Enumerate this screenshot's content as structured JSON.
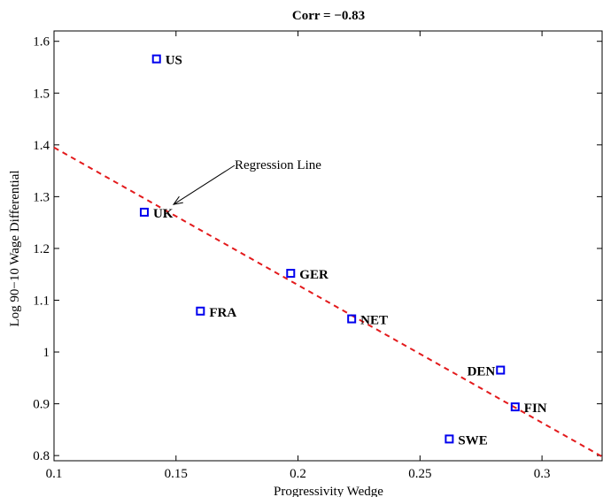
{
  "chart_data": {
    "type": "scatter",
    "title": "Corr = −0.83",
    "xlabel": "Progressivity Wedge",
    "ylabel": "Log 90−10 Wage Differential",
    "xlim": [
      0.1,
      0.325
    ],
    "ylim": [
      0.79,
      1.62
    ],
    "xticks": [
      {
        "value": 0.1,
        "label": "0.1"
      },
      {
        "value": 0.15,
        "label": "0.15"
      },
      {
        "value": 0.2,
        "label": "0.2"
      },
      {
        "value": 0.25,
        "label": "0.25"
      },
      {
        "value": 0.3,
        "label": "0.3"
      }
    ],
    "yticks": [
      {
        "value": 0.8,
        "label": "0.8"
      },
      {
        "value": 0.9,
        "label": "0.9"
      },
      {
        "value": 1.0,
        "label": "1"
      },
      {
        "value": 1.1,
        "label": "1.1"
      },
      {
        "value": 1.2,
        "label": "1.2"
      },
      {
        "value": 1.3,
        "label": "1.3"
      },
      {
        "value": 1.4,
        "label": "1.4"
      },
      {
        "value": 1.5,
        "label": "1.5"
      },
      {
        "value": 1.6,
        "label": "1.6"
      }
    ],
    "points": [
      {
        "label": "US",
        "x": 0.142,
        "y": 1.566,
        "label_side": "right"
      },
      {
        "label": "UK",
        "x": 0.137,
        "y": 1.27,
        "label_side": "right"
      },
      {
        "label": "FRA",
        "x": 0.16,
        "y": 1.079,
        "label_side": "right"
      },
      {
        "label": "GER",
        "x": 0.197,
        "y": 1.152,
        "label_side": "right"
      },
      {
        "label": "NET",
        "x": 0.222,
        "y": 1.064,
        "label_side": "right"
      },
      {
        "label": "DEN",
        "x": 0.283,
        "y": 0.965,
        "label_side": "left"
      },
      {
        "label": "FIN",
        "x": 0.289,
        "y": 0.894,
        "label_side": "right"
      },
      {
        "label": "SWE",
        "x": 0.262,
        "y": 0.832,
        "label_side": "right"
      }
    ],
    "regression_line": {
      "x1": 0.1,
      "y1": 1.395,
      "x2": 0.325,
      "y2": 0.797,
      "color": "#e31a1c",
      "style": "dashed"
    },
    "annotation": {
      "text": "Regression Line",
      "points_to": {
        "x": 0.149,
        "y": 1.285
      }
    },
    "marker_color": "#0000ee",
    "grid": false
  }
}
